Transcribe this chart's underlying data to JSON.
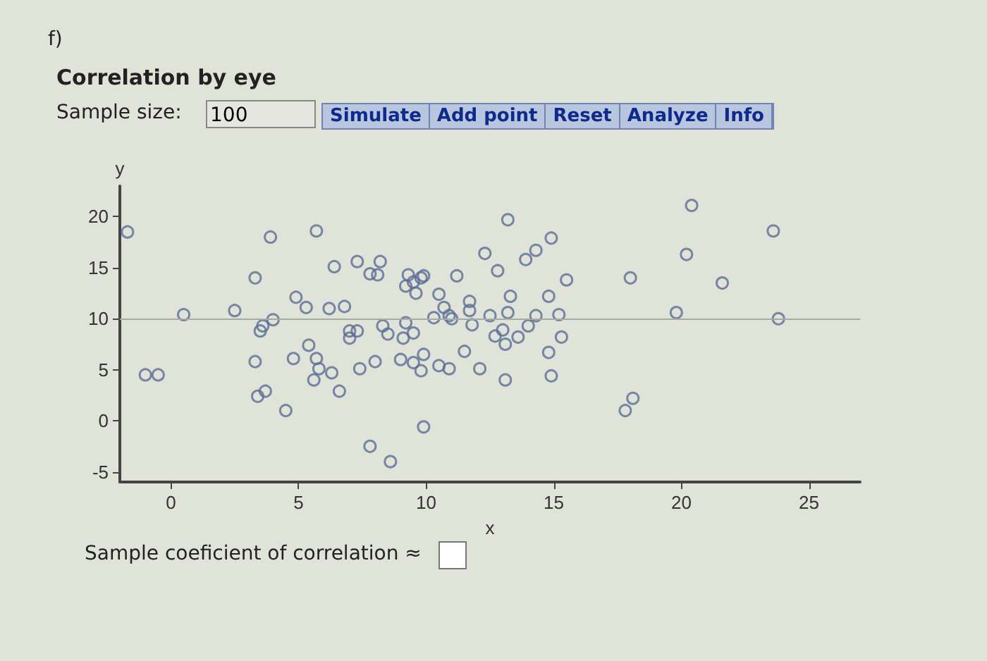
{
  "chart_data": {
    "type": "scatter",
    "title": "Correlation by eye",
    "xlabel": "x",
    "ylabel": "y",
    "annotations": [
      "f)",
      "Sample size:",
      "100",
      "Simulate",
      "Add point",
      "Reset",
      "Analyze",
      "Info",
      "Sample coeficient of correlation ≈"
    ],
    "series": [
      {
        "color": "#5b6d96",
        "x": [
          -1.7,
          -1,
          -0.5,
          0.5,
          2.5,
          3.3,
          3.9,
          5.7,
          3.3,
          3.4,
          3.7,
          3.5,
          3.6,
          4.0,
          4.5,
          4.8,
          4.9,
          5.3,
          5.4,
          5.6,
          5.7,
          5.8,
          6.4,
          6.2,
          6.3,
          6.6,
          6.8,
          7.0,
          7.0,
          7.3,
          7.4,
          7.3,
          7.8,
          8.1,
          8.2,
          8.0,
          7.8,
          8.3,
          8.5,
          8.6,
          9.3,
          9.2,
          9.5,
          9.6,
          9.8,
          9.9,
          9.2,
          9.1,
          9.5,
          9.0,
          9.5,
          9.8,
          9.9,
          9.9,
          10.5,
          10.3,
          10.7,
          10.9,
          11.0,
          10.5,
          10.9,
          11.2,
          11.5,
          11.7,
          11.7,
          11.8,
          12.1,
          12.3,
          12.5,
          12.8,
          13.2,
          13.3,
          13.2,
          13.0,
          12.7,
          13.1,
          13.1,
          13.6,
          13.9,
          14.3,
          14.0,
          14.3,
          14.8,
          14.8,
          14.9,
          14.9,
          15.2,
          15.3,
          15.5,
          18.0,
          17.8,
          18.1,
          20.4,
          23.6,
          20.2,
          21.6,
          19.8,
          23.8
        ],
        "values": [
          18.5,
          4.5,
          4.5,
          10.4,
          10.8,
          14,
          18,
          18.6,
          5.8,
          2.4,
          2.9,
          8.8,
          9.3,
          9.9,
          1.0,
          6.1,
          12.1,
          11.1,
          7.4,
          4.0,
          6.1,
          5.1,
          15.1,
          11.0,
          4.7,
          2.9,
          11.2,
          8.1,
          8.8,
          8.8,
          5.1,
          15.6,
          14.4,
          14.3,
          15.6,
          5.8,
          -2.5,
          9.3,
          8.5,
          -4.0,
          14.3,
          13.2,
          13.6,
          12.5,
          14.0,
          14.2,
          9.6,
          8.1,
          8.6,
          6.0,
          5.7,
          4.9,
          6.5,
          -0.6,
          12.4,
          10.1,
          11.1,
          10.3,
          10.0,
          5.4,
          5.1,
          14.2,
          6.8,
          11.7,
          10.8,
          9.4,
          5.1,
          16.4,
          10.3,
          14.7,
          19.7,
          12.2,
          10.6,
          8.9,
          8.3,
          7.5,
          4.0,
          8.2,
          15.8,
          16.7,
          9.3,
          10.3,
          12.2,
          6.7,
          4.4,
          17.9,
          10.4,
          8.2,
          13.8,
          14.0,
          1.0,
          2.2,
          21.1,
          18.6,
          16.3,
          13.5,
          10.6,
          10.0
        ]
      }
    ],
    "xlim": [
      -2,
      27
    ],
    "xticks": [
      0,
      5,
      10,
      15,
      20,
      25
    ],
    "ylim": [
      -6,
      23
    ],
    "yticks": [
      -5,
      0,
      5,
      10,
      15,
      20
    ],
    "ref_lines": [
      {
        "axis": "y",
        "value": 10,
        "color": "#a4aca4"
      }
    ],
    "grid": false,
    "marker": "circle"
  }
}
